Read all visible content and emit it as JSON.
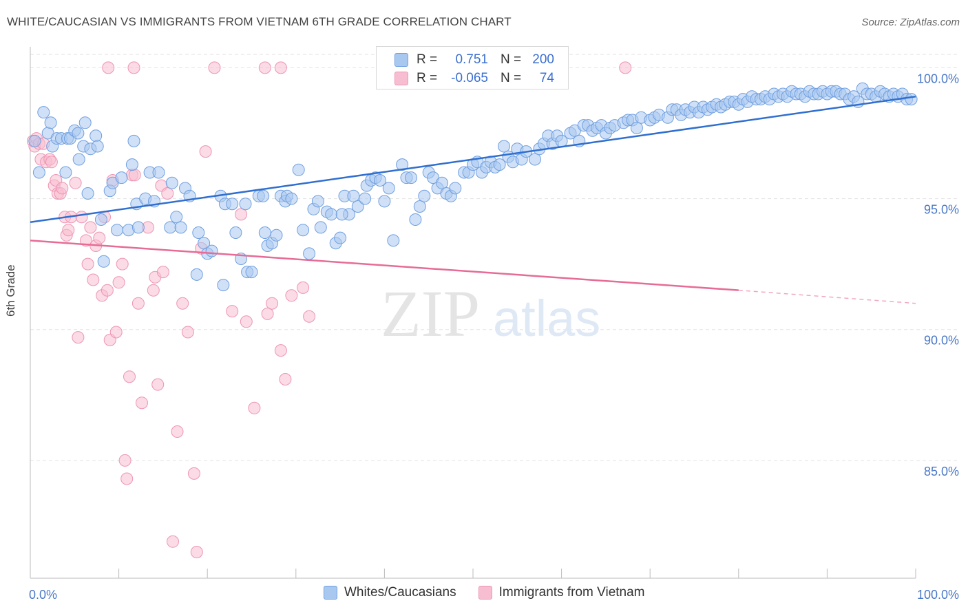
{
  "title": "WHITE/CAUCASIAN VS IMMIGRANTS FROM VIETNAM 6TH GRADE CORRELATION CHART",
  "source": "Source: ZipAtlas.com",
  "watermark": {
    "zip": "ZIP",
    "atlas": "atlas"
  },
  "colors": {
    "blue_fill": "#a9c8f0",
    "blue_stroke": "#6f9fe0",
    "blue_line": "#2f6fd0",
    "pink_fill": "#f7bdd0",
    "pink_stroke": "#ee95b3",
    "pink_line": "#e76b97",
    "tick_label": "#4a78c8",
    "grid": "#e2e2e2"
  },
  "legend_stats": {
    "rows": [
      {
        "r_label": "R =",
        "r_value": "0.751",
        "n_label": "N =",
        "n_value": "200"
      },
      {
        "r_label": "R =",
        "r_value": "-0.065",
        "n_label": "N =",
        "n_value": "74"
      }
    ]
  },
  "legend_bottom": {
    "items": [
      "Whites/Caucasians",
      "Immigrants from Vietnam"
    ]
  },
  "chart_data": {
    "type": "scatter",
    "title": "WHITE/CAUCASIAN VS IMMIGRANTS FROM VIETNAM 6TH GRADE CORRELATION CHART",
    "xlabel": "",
    "ylabel": "6th Grade",
    "xlim": [
      0,
      100
    ],
    "ylim": [
      80.5,
      100.8
    ],
    "x_tick_labels": [
      "0.0%",
      "100.0%"
    ],
    "y_ticks": [
      85,
      90,
      95,
      100
    ],
    "y_tick_labels": [
      "85.0%",
      "90.0%",
      "95.0%",
      "100.0%"
    ],
    "grid": true,
    "legend_position": "top-center",
    "series": [
      {
        "name": "Whites/Caucasians",
        "r": 0.751,
        "n": 200,
        "trend": {
          "x": [
            0,
            100
          ],
          "y": [
            94.1,
            98.9
          ]
        },
        "points": [
          [
            0.5,
            97.2
          ],
          [
            1,
            96
          ],
          [
            1.5,
            98.3
          ],
          [
            2,
            97.5
          ],
          [
            2.5,
            97
          ],
          [
            3,
            97.3
          ],
          [
            3.5,
            97.3
          ],
          [
            4,
            96
          ],
          [
            4.2,
            97.3
          ],
          [
            4.5,
            97.3
          ],
          [
            5,
            97.6
          ],
          [
            5.5,
            96.5
          ],
          [
            6,
            97
          ],
          [
            6.2,
            97.9
          ],
          [
            6.5,
            95.2
          ],
          [
            6.8,
            96.9
          ],
          [
            7.4,
            97.4
          ],
          [
            7.6,
            97
          ],
          [
            8,
            94.2
          ],
          [
            8.3,
            92.6
          ],
          [
            9,
            95.3
          ],
          [
            9.3,
            95.6
          ],
          [
            9.8,
            93.8
          ],
          [
            10.3,
            95.8
          ],
          [
            11.1,
            93.8
          ],
          [
            11.5,
            96.3
          ],
          [
            11.7,
            97.2
          ],
          [
            12,
            94.8
          ],
          [
            12.2,
            93.9
          ],
          [
            13,
            95.0
          ],
          [
            13.5,
            96.0
          ],
          [
            14,
            94.9
          ],
          [
            14.5,
            96.0
          ],
          [
            15.8,
            93.9
          ],
          [
            16,
            95.6
          ],
          [
            16.5,
            94.3
          ],
          [
            17,
            93.9
          ],
          [
            17.5,
            95.4
          ],
          [
            18,
            95.1
          ],
          [
            18.8,
            92.1
          ],
          [
            19,
            93.7
          ],
          [
            19.6,
            93.3
          ],
          [
            20,
            92.9
          ],
          [
            20.5,
            93.0
          ],
          [
            21.5,
            95.1
          ],
          [
            21.8,
            91.7
          ],
          [
            22,
            94.8
          ],
          [
            22.8,
            94.8
          ],
          [
            23.2,
            93.7
          ],
          [
            23.8,
            92.7
          ],
          [
            24.5,
            92.2
          ],
          [
            24.3,
            94.8
          ],
          [
            25,
            92.2
          ],
          [
            25.8,
            95.1
          ],
          [
            26.3,
            95.1
          ],
          [
            26.8,
            93.2
          ],
          [
            27.3,
            93.3
          ],
          [
            27.8,
            93.6
          ],
          [
            28.3,
            95.1
          ],
          [
            28.8,
            94.9
          ],
          [
            29,
            95.1
          ],
          [
            29.5,
            95.0
          ],
          [
            30.3,
            96.1
          ],
          [
            30.8,
            93.8
          ],
          [
            31.5,
            92.9
          ],
          [
            32,
            94.6
          ],
          [
            32.5,
            94.9
          ],
          [
            32.8,
            93.9
          ],
          [
            33.5,
            94.5
          ],
          [
            34,
            94.4
          ],
          [
            34.5,
            93.3
          ],
          [
            35,
            93.5
          ],
          [
            35.5,
            95.1
          ],
          [
            36,
            94.4
          ],
          [
            36.5,
            95.1
          ],
          [
            37,
            94.7
          ],
          [
            38,
            95.5
          ],
          [
            38.5,
            95.7
          ],
          [
            39,
            95.8
          ],
          [
            39.5,
            95.7
          ],
          [
            40,
            94.9
          ],
          [
            40.5,
            95.4
          ],
          [
            41,
            93.4
          ],
          [
            42,
            96.3
          ],
          [
            42.5,
            95.8
          ],
          [
            43,
            95.8
          ],
          [
            43.5,
            94.2
          ],
          [
            44,
            94.7
          ],
          [
            44.5,
            95.1
          ],
          [
            45,
            96.0
          ],
          [
            45.5,
            95.8
          ],
          [
            46,
            95.4
          ],
          [
            46.5,
            95.6
          ],
          [
            47,
            95.2
          ],
          [
            47.5,
            95.1
          ],
          [
            48,
            95.4
          ],
          [
            49,
            96.0
          ],
          [
            49.5,
            96.0
          ],
          [
            50,
            96.3
          ],
          [
            50.5,
            96.4
          ],
          [
            51,
            96.0
          ],
          [
            51.5,
            96.2
          ],
          [
            52,
            96.4
          ],
          [
            52.5,
            96.2
          ],
          [
            53,
            96.3
          ],
          [
            53.5,
            97.0
          ],
          [
            54,
            96.6
          ],
          [
            54.5,
            96.4
          ],
          [
            55,
            96.9
          ],
          [
            55.5,
            96.5
          ],
          [
            56,
            96.8
          ],
          [
            57,
            96.5
          ],
          [
            57.5,
            96.9
          ],
          [
            58,
            97.1
          ],
          [
            58.5,
            97.4
          ],
          [
            59,
            97.1
          ],
          [
            59.5,
            97.4
          ],
          [
            60,
            97.2
          ],
          [
            61,
            97.5
          ],
          [
            61.5,
            97.6
          ],
          [
            62,
            97.2
          ],
          [
            62.5,
            97.8
          ],
          [
            63,
            97.8
          ],
          [
            63.5,
            97.6
          ],
          [
            64,
            97.7
          ],
          [
            64.5,
            97.8
          ],
          [
            65,
            97.5
          ],
          [
            65.5,
            97.7
          ],
          [
            66,
            97.8
          ],
          [
            67,
            97.9
          ],
          [
            67.5,
            98.0
          ],
          [
            68,
            98.0
          ],
          [
            68.5,
            97.7
          ],
          [
            69,
            98.1
          ],
          [
            70,
            98.0
          ],
          [
            70.5,
            98.1
          ],
          [
            71,
            98.2
          ],
          [
            72,
            98.1
          ],
          [
            72.5,
            98.4
          ],
          [
            73,
            98.4
          ],
          [
            73.5,
            98.2
          ],
          [
            74,
            98.4
          ],
          [
            74.5,
            98.3
          ],
          [
            75,
            98.5
          ],
          [
            75.5,
            98.3
          ],
          [
            76,
            98.5
          ],
          [
            76.5,
            98.4
          ],
          [
            77,
            98.5
          ],
          [
            77.5,
            98.6
          ],
          [
            78,
            98.5
          ],
          [
            78.5,
            98.6
          ],
          [
            79,
            98.7
          ],
          [
            79.5,
            98.7
          ],
          [
            80,
            98.6
          ],
          [
            80.5,
            98.8
          ],
          [
            81,
            98.7
          ],
          [
            81.5,
            98.9
          ],
          [
            82,
            98.8
          ],
          [
            82.5,
            98.8
          ],
          [
            83,
            98.9
          ],
          [
            83.5,
            98.8
          ],
          [
            84,
            99.0
          ],
          [
            84.5,
            98.9
          ],
          [
            85,
            99.0
          ],
          [
            85.5,
            98.9
          ],
          [
            86,
            99.1
          ],
          [
            86.5,
            99.0
          ],
          [
            87,
            99.0
          ],
          [
            87.5,
            98.9
          ],
          [
            88,
            99.1
          ],
          [
            88.5,
            99.0
          ],
          [
            89,
            99.0
          ],
          [
            89.5,
            99.1
          ],
          [
            90,
            99.0
          ],
          [
            90.5,
            99.1
          ],
          [
            91,
            99.1
          ],
          [
            91.5,
            99.0
          ],
          [
            92,
            99.0
          ],
          [
            92.5,
            98.8
          ],
          [
            93,
            98.9
          ],
          [
            93.5,
            98.7
          ],
          [
            94,
            99.2
          ],
          [
            94.5,
            99.0
          ],
          [
            95,
            99.0
          ],
          [
            95.5,
            98.9
          ],
          [
            96,
            99.1
          ],
          [
            96.5,
            99.0
          ],
          [
            97,
            98.9
          ],
          [
            97.5,
            99.0
          ],
          [
            98,
            98.9
          ],
          [
            98.5,
            99.0
          ],
          [
            99,
            98.8
          ],
          [
            99.5,
            98.8
          ],
          [
            35.2,
            94.4
          ],
          [
            37.8,
            95.0
          ],
          [
            26.5,
            93.7
          ],
          [
            5.4,
            97.5
          ],
          [
            2.3,
            97.9
          ]
        ]
      },
      {
        "name": "Immigrants from Vietnam",
        "r": -0.065,
        "n": 74,
        "trend": {
          "x": [
            0,
            80
          ],
          "y": [
            93.4,
            91.5
          ]
        },
        "trend_dashed": {
          "x": [
            80,
            100
          ],
          "y": [
            91.5,
            91.0
          ]
        },
        "points": [
          [
            0.3,
            97.2
          ],
          [
            0.5,
            97.0
          ],
          [
            0.7,
            97.3
          ],
          [
            1,
            97.1
          ],
          [
            1.2,
            96.5
          ],
          [
            1.5,
            97.1
          ],
          [
            1.8,
            96.4
          ],
          [
            2.2,
            96.5
          ],
          [
            2.4,
            96.4
          ],
          [
            2.7,
            95.5
          ],
          [
            2.9,
            95.7
          ],
          [
            3.1,
            95.2
          ],
          [
            3.4,
            95.2
          ],
          [
            3.6,
            95.4
          ],
          [
            3.9,
            94.3
          ],
          [
            4.1,
            93.6
          ],
          [
            4.3,
            93.8
          ],
          [
            4.6,
            94.3
          ],
          [
            5.1,
            95.6
          ],
          [
            5.4,
            89.7
          ],
          [
            5.8,
            94.3
          ],
          [
            6.3,
            93.4
          ],
          [
            6.5,
            92.5
          ],
          [
            6.8,
            93.9
          ],
          [
            7.1,
            91.9
          ],
          [
            7.4,
            93.2
          ],
          [
            7.8,
            93.5
          ],
          [
            8.1,
            91.3
          ],
          [
            8.4,
            94.3
          ],
          [
            8.7,
            91.5
          ],
          [
            9.0,
            89.6
          ],
          [
            9.3,
            95.7
          ],
          [
            9.7,
            89.9
          ],
          [
            10,
            91.8
          ],
          [
            10.4,
            92.5
          ],
          [
            10.7,
            85.0
          ],
          [
            10.9,
            84.3
          ],
          [
            11.2,
            88.2
          ],
          [
            11.5,
            95.9
          ],
          [
            11.8,
            95.9
          ],
          [
            12.2,
            91.0
          ],
          [
            12.6,
            87.2
          ],
          [
            13.3,
            93.9
          ],
          [
            13.9,
            91.5
          ],
          [
            14.1,
            92.0
          ],
          [
            14.4,
            87.9
          ],
          [
            14.8,
            95.5
          ],
          [
            15.5,
            95.2
          ],
          [
            16.1,
            81.9
          ],
          [
            16.6,
            86.1
          ],
          [
            17.2,
            91.0
          ],
          [
            17.8,
            89.9
          ],
          [
            18.5,
            84.5
          ],
          [
            18.8,
            81.5
          ],
          [
            19.3,
            93.1
          ],
          [
            19.8,
            96.8
          ],
          [
            22.8,
            90.7
          ],
          [
            23.8,
            94.4
          ],
          [
            24.4,
            90.3
          ],
          [
            25.3,
            87.0
          ],
          [
            26.8,
            90.6
          ],
          [
            27.3,
            91.0
          ],
          [
            28.3,
            89.2
          ],
          [
            29.5,
            91.3
          ],
          [
            30.8,
            91.6
          ],
          [
            31.5,
            90.5
          ],
          [
            8.8,
            100.0
          ],
          [
            11.7,
            100.0
          ],
          [
            20.8,
            100.0
          ],
          [
            26.5,
            100.0
          ],
          [
            28.3,
            100.0
          ],
          [
            67.2,
            100.0
          ],
          [
            28.8,
            88.1
          ],
          [
            15.0,
            92.2
          ]
        ]
      }
    ]
  }
}
